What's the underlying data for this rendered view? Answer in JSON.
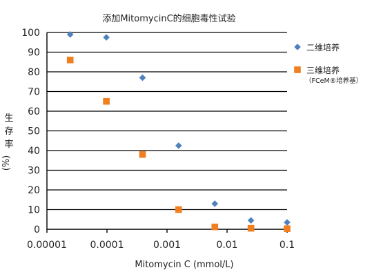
{
  "chart_data": {
    "type": "scatter",
    "title": "添加MitomycinC的细胞毒性试验",
    "xlabel": "Mitomycin C (mmol/L)",
    "ylabel_chars": [
      "生",
      "存",
      "率"
    ],
    "ylabel_unit": "(%)",
    "x_scale": "log",
    "xlim": [
      1e-05,
      0.1
    ],
    "x_ticks": [
      1e-05,
      0.0001,
      0.001,
      0.01,
      0.1
    ],
    "x_tick_labels": [
      "0.00001",
      "0.0001",
      "0.001",
      "0.01",
      "0.1"
    ],
    "ylim": [
      0,
      100
    ],
    "y_ticks": [
      0,
      10,
      20,
      30,
      40,
      50,
      60,
      70,
      80,
      90,
      100
    ],
    "grid": "horizontal",
    "legend_position": "right",
    "series": [
      {
        "name": "二维培养",
        "marker": "diamond",
        "color": "#4f81bd",
        "points": [
          {
            "x": 2.44e-05,
            "y": 99
          },
          {
            "x": 9.77e-05,
            "y": 97.5
          },
          {
            "x": 0.000391,
            "y": 77
          },
          {
            "x": 0.00156,
            "y": 42.5
          },
          {
            "x": 0.00625,
            "y": 13
          },
          {
            "x": 0.025,
            "y": 4.5
          },
          {
            "x": 0.1,
            "y": 3.5
          }
        ]
      },
      {
        "name": "三维培养",
        "name_note": "（FCeM®培养基）",
        "marker": "square",
        "color": "#f07f21",
        "points": [
          {
            "x": 2.44e-05,
            "y": 86
          },
          {
            "x": 9.77e-05,
            "y": 65
          },
          {
            "x": 0.000391,
            "y": 38
          },
          {
            "x": 0.00156,
            "y": 10
          },
          {
            "x": 0.00625,
            "y": 1.2
          },
          {
            "x": 0.025,
            "y": 0.5
          },
          {
            "x": 0.1,
            "y": 0.3
          }
        ]
      }
    ]
  }
}
